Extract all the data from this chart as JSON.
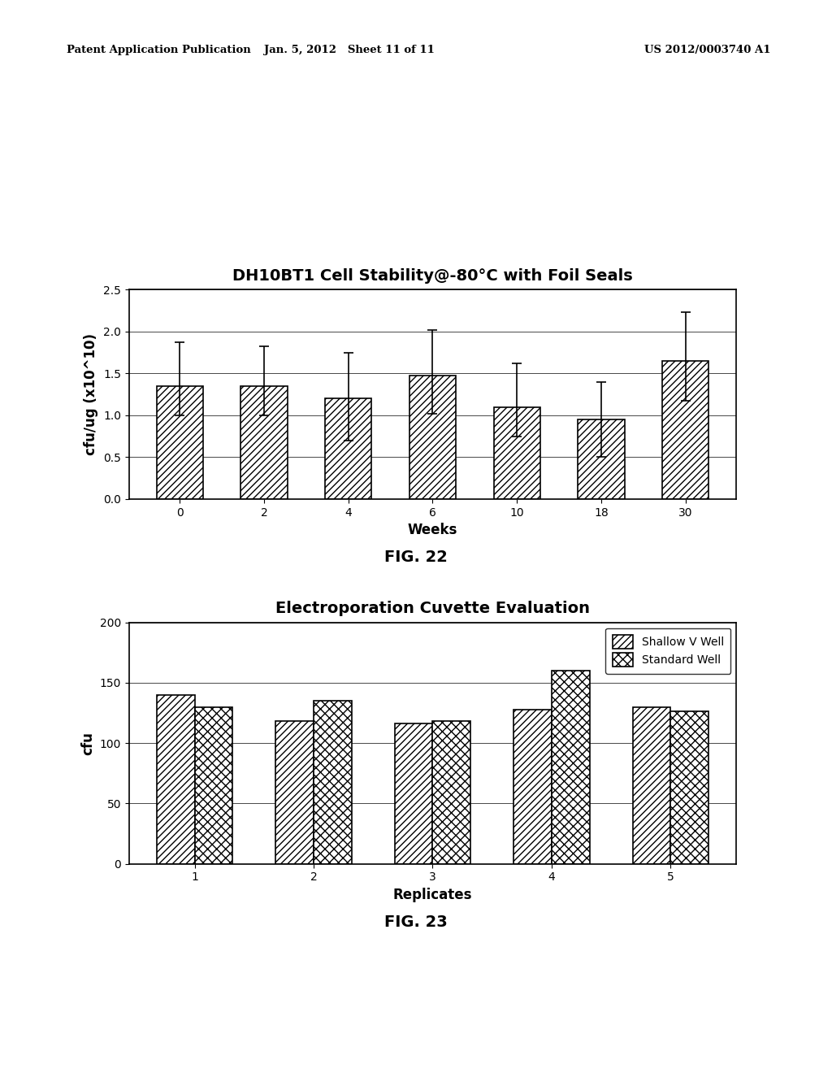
{
  "fig22": {
    "title": "DH10BT1 Cell Stability@-80°C with Foil Seals",
    "xlabel": "Weeks",
    "ylabel": "cfu/ug (x10^10)",
    "categories": [
      0,
      2,
      4,
      6,
      10,
      18,
      30
    ],
    "values": [
      1.35,
      1.35,
      1.2,
      1.47,
      1.1,
      0.95,
      1.65
    ],
    "yerr_upper": [
      0.52,
      0.47,
      0.55,
      0.55,
      0.52,
      0.45,
      0.58
    ],
    "yerr_lower": [
      0.35,
      0.35,
      0.5,
      0.45,
      0.35,
      0.45,
      0.48
    ],
    "ylim": [
      0,
      2.5
    ],
    "yticks": [
      0,
      0.5,
      1.0,
      1.5,
      2.0,
      2.5
    ],
    "fig_caption": "FIG. 22"
  },
  "fig23": {
    "title": "Electroporation Cuvette Evaluation",
    "xlabel": "Replicates",
    "ylabel": "cfu",
    "categories": [
      1,
      2,
      3,
      4,
      5
    ],
    "shallow_v_well": [
      140,
      118,
      116,
      128,
      130
    ],
    "standard_well": [
      130,
      135,
      118,
      160,
      126
    ],
    "ylim": [
      0,
      200
    ],
    "yticks": [
      0,
      50,
      100,
      150,
      200
    ],
    "legend_labels": [
      "Shallow V Well",
      "Standard Well"
    ],
    "fig_caption": "FIG. 23"
  },
  "header_left": "Patent Application Publication",
  "header_center": "Jan. 5, 2012   Sheet 11 of 11",
  "header_right": "US 2012/0003740 A1",
  "background_color": "#ffffff",
  "bar_color": "#ffffff",
  "bar_edge_color": "#000000",
  "hatch_pattern1": "////",
  "hatch_pattern2": "\\u0023\\u0023\\u0023\\u0023",
  "title_fontsize": 14,
  "axis_label_fontsize": 12,
  "tick_fontsize": 10,
  "caption_fontsize": 14
}
